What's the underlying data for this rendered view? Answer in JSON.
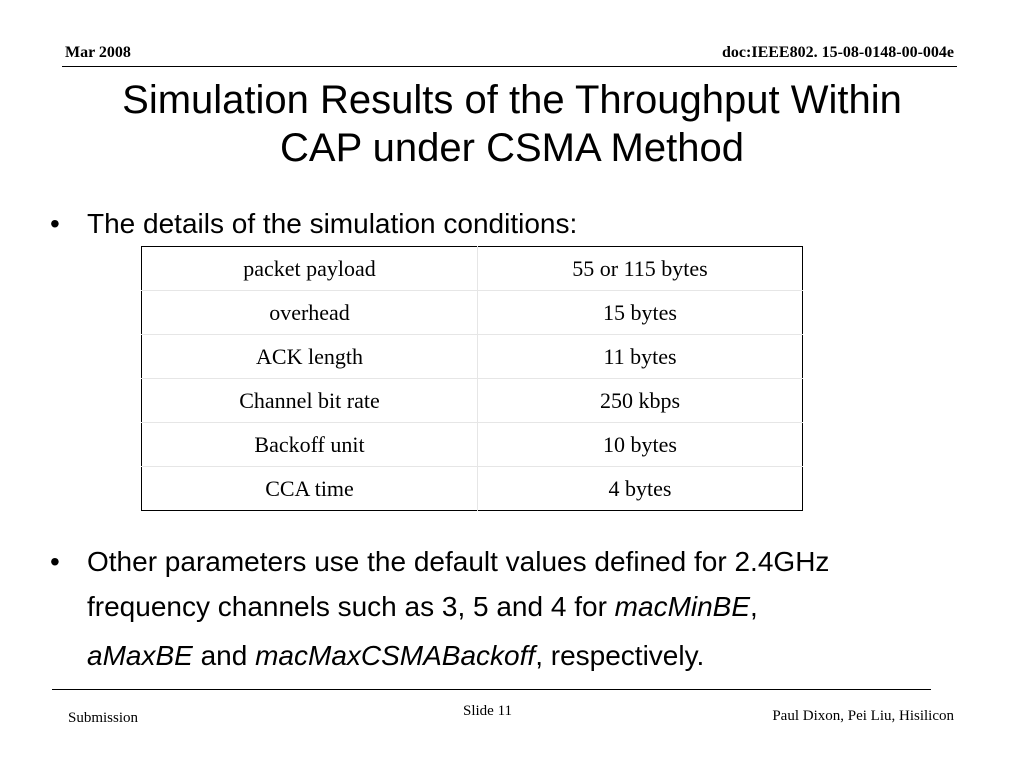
{
  "header": {
    "date": "Mar  2008",
    "doc_id": "doc:IEEE802. 15-08-0148-00-004e"
  },
  "title": {
    "line1": "Simulation Results of the Throughput Within",
    "line2": "CAP under CSMA Method"
  },
  "bullets": {
    "marker": "•",
    "first": "The details of the simulation conditions:",
    "second": {
      "line1": "Other parameters use the default values defined for 2.4GHz",
      "line2_prefix": "frequency channels such as 3, 5 and 4 for ",
      "term1": "macMinBE",
      "line2_suffix": ",",
      "term2": "aMaxBE",
      "and": " and ",
      "term3": "macMaxCSMABackoff",
      "end": ", respectively."
    }
  },
  "conditions_table": {
    "rows": [
      {
        "parameter": "packet payload",
        "value": "55 or 115 bytes"
      },
      {
        "parameter": "overhead",
        "value": "15 bytes"
      },
      {
        "parameter": "ACK length",
        "value": "11 bytes"
      },
      {
        "parameter": "Channel bit rate",
        "value": "250 kbps"
      },
      {
        "parameter": "Backoff unit",
        "value": "10 bytes"
      },
      {
        "parameter": "CCA time",
        "value": "4 bytes"
      }
    ]
  },
  "footer": {
    "left": "Submission",
    "slide": "Slide 11",
    "authors": "Paul Dixon, Pei Liu, Hisilicon"
  }
}
